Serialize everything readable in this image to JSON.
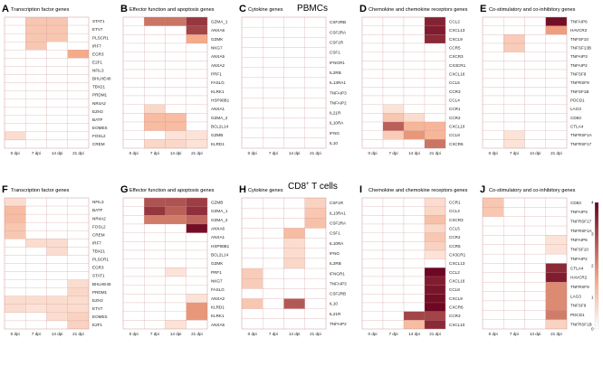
{
  "sections": [
    {
      "title": "PBMCs",
      "superscript": ""
    },
    {
      "title": "CD8",
      "superscript": "+",
      "suffix": " T cells"
    }
  ],
  "legend": {
    "ticks": [
      "4",
      "3",
      "2",
      "1",
      "0"
    ],
    "min": 0,
    "max": 4
  },
  "colors": {
    "low": "#ffffff",
    "mid": "#f4a582",
    "high": "#67001f",
    "grid": "#c98a8a"
  },
  "chart_data": [
    {
      "type": "heatmap",
      "label": "A",
      "title": "Transcription factor genes",
      "columns": [
        "0 dpi",
        "7 dpi",
        "14 dpi",
        "21 dpi"
      ],
      "rows": [
        "STAT1",
        "ETV7",
        "PLSCR1",
        "IRF7",
        "EGR3",
        "E2F1",
        "NFIL3",
        "BHLHE40",
        "TBX21",
        "PRDM1",
        "NR4A2",
        "EZH2",
        "BATF",
        "EOMES",
        "FOSL2",
        "CREM"
      ],
      "values": [
        [
          0,
          1,
          1,
          0
        ],
        [
          0,
          1,
          1,
          0
        ],
        [
          0,
          1,
          1,
          0
        ],
        [
          0,
          1,
          0,
          0
        ],
        [
          0,
          0,
          0,
          1.5
        ],
        [
          0,
          0,
          0,
          0
        ],
        [
          0,
          0,
          0,
          0
        ],
        [
          0,
          0,
          0,
          0
        ],
        [
          0,
          0,
          0,
          0
        ],
        [
          0,
          0,
          0,
          0
        ],
        [
          0,
          0,
          0,
          0
        ],
        [
          0,
          0,
          0,
          0
        ],
        [
          0,
          0,
          0,
          0
        ],
        [
          0,
          0,
          0,
          0
        ],
        [
          0.6,
          0,
          0,
          0
        ],
        [
          0,
          0,
          0,
          0
        ]
      ]
    },
    {
      "type": "heatmap",
      "label": "B",
      "title": "Effector function and apoptosis genes",
      "columns": [
        "0 dpi",
        "7 dpi",
        "14 dpi",
        "21 dpi"
      ],
      "rows": [
        "GZMA_1",
        "ANXA6",
        "GZMK",
        "NKG7",
        "ANXA5",
        "ANXA2",
        "PRF1",
        "FASLG",
        "KLRK1",
        "HSP90B1",
        "ANXA1",
        "GZMA_2",
        "BCL2L14",
        "GZMB",
        "KLRD1"
      ],
      "values": [
        [
          0,
          2.3,
          2.3,
          3.2
        ],
        [
          0,
          0,
          0,
          3
        ],
        [
          0,
          0,
          0,
          1.5
        ],
        [
          0,
          0,
          0,
          0
        ],
        [
          0,
          0,
          0,
          0
        ],
        [
          0,
          0,
          0,
          0
        ],
        [
          0,
          0,
          0,
          0
        ],
        [
          0,
          0,
          0,
          0
        ],
        [
          0,
          0,
          0,
          0
        ],
        [
          0,
          0,
          0,
          0
        ],
        [
          0,
          0.7,
          0,
          0
        ],
        [
          0,
          1.2,
          1.2,
          0
        ],
        [
          0,
          1.2,
          1.2,
          0
        ],
        [
          0,
          0,
          0.5,
          0.5
        ],
        [
          0,
          0.7,
          0.7,
          0.5
        ]
      ]
    },
    {
      "type": "heatmap",
      "label": "C",
      "title": "Cytokine genes",
      "columns": [
        "0 dpi",
        "7 dpi",
        "14 dpi",
        "21 dpi"
      ],
      "rows": [
        "CSF2RB",
        "CSF2RA",
        "CSF1R",
        "CSF1",
        "IFNGR1",
        "IL2RB",
        "IL13RA1",
        "TNFAIP3",
        "TNFAIP2",
        "IL21R",
        "IL10RA",
        "IFNG",
        "IL10"
      ],
      "values": [
        [
          0,
          0,
          0,
          0
        ],
        [
          0,
          0,
          0,
          0
        ],
        [
          0,
          0,
          0,
          0
        ],
        [
          0,
          0,
          0,
          0
        ],
        [
          0,
          0,
          0,
          0
        ],
        [
          0,
          0,
          0,
          0
        ],
        [
          0,
          0,
          0,
          0
        ],
        [
          0,
          0,
          0,
          0
        ],
        [
          0,
          0,
          0,
          0
        ],
        [
          0,
          0,
          0,
          0
        ],
        [
          0,
          0,
          0,
          0
        ],
        [
          0,
          0,
          0,
          0
        ],
        [
          0,
          0,
          0,
          0
        ]
      ]
    },
    {
      "type": "heatmap",
      "label": "D",
      "title": "Chemokine and chemokine receptors genes",
      "columns": [
        "0 dpi",
        "7 dpi",
        "14 dpi",
        "21 dpi"
      ],
      "rows": [
        "CCL2",
        "CXCL13",
        "CXCL9",
        "CCR5",
        "CXCR3",
        "CX3CR1",
        "CXCL16",
        "CCL5",
        "CCR3",
        "CCL4",
        "CCR1",
        "CCR2",
        "CXCL10",
        "CCL8",
        "CXCR6"
      ],
      "values": [
        [
          0,
          0,
          0,
          3.5
        ],
        [
          0,
          0,
          0,
          3.6
        ],
        [
          0,
          0,
          0,
          3.4
        ],
        [
          0,
          0,
          0,
          0
        ],
        [
          0,
          0,
          0,
          0
        ],
        [
          0,
          0,
          0,
          0
        ],
        [
          0,
          0,
          0,
          0
        ],
        [
          0,
          0,
          0,
          0
        ],
        [
          0,
          0,
          0,
          0
        ],
        [
          0,
          0,
          0,
          0
        ],
        [
          0,
          0.5,
          0,
          0
        ],
        [
          0,
          1,
          0.6,
          0
        ],
        [
          0,
          2.6,
          1.3,
          1.3
        ],
        [
          0,
          0.9,
          1.8,
          1.3
        ],
        [
          0,
          0,
          0,
          2.3
        ]
      ]
    },
    {
      "type": "heatmap",
      "label": "E",
      "title": "Co-stimulatory and co-inhibitory genes",
      "columns": [
        "0 dpi",
        "7 dpi",
        "14 dpi",
        "21 dpi"
      ],
      "rows": [
        "TNFAIP6",
        "HAVCR2",
        "TNFSF10",
        "TNFSF13B",
        "TNFAIP3",
        "TNFAIP2",
        "TNFSF9",
        "TNFRSF9",
        "TNFSF1B",
        "PDCD1",
        "LAG3",
        "CD83",
        "CTLA4",
        "TNFRSF1A",
        "TNFRSF17"
      ],
      "values": [
        [
          0,
          0,
          0,
          3.8
        ],
        [
          0,
          0,
          0,
          1.7
        ],
        [
          0,
          0.9,
          0,
          0
        ],
        [
          0,
          0.9,
          0,
          0
        ],
        [
          0,
          0,
          0,
          0
        ],
        [
          0,
          0,
          0,
          0
        ],
        [
          0,
          0,
          0,
          0
        ],
        [
          0,
          0,
          0,
          0
        ],
        [
          0,
          0,
          0,
          0
        ],
        [
          0,
          0,
          0,
          0
        ],
        [
          0,
          0,
          0,
          0
        ],
        [
          0,
          0,
          0,
          0
        ],
        [
          0,
          0,
          0,
          0
        ],
        [
          0,
          0.5,
          0,
          0
        ],
        [
          0,
          0.5,
          0,
          0
        ]
      ]
    },
    {
      "type": "heatmap",
      "label": "F",
      "title": "Transcription factor genes",
      "columns": [
        "0 dpi",
        "7 dpi",
        "14 dpi",
        "21 dpi"
      ],
      "rows": [
        "NFIL3",
        "BATF",
        "NR4A2",
        "FOSL2",
        "CREM",
        "IRF7",
        "TBX21",
        "PLSCR1",
        "EGR3",
        "STAT1",
        "BHLHE40",
        "PRDM1",
        "EZH2",
        "ETV7",
        "EOMES",
        "E2F1"
      ],
      "values": [
        [
          0.6,
          0,
          0,
          0
        ],
        [
          1.2,
          0,
          0,
          0
        ],
        [
          1.2,
          0,
          0,
          0
        ],
        [
          1,
          0,
          0,
          0
        ],
        [
          1,
          0,
          0,
          0
        ],
        [
          0,
          0.6,
          0.6,
          0
        ],
        [
          0,
          0,
          0.6,
          0
        ],
        [
          0,
          0,
          0,
          0
        ],
        [
          0,
          0,
          0,
          0
        ],
        [
          0,
          0,
          0,
          0
        ],
        [
          0,
          0,
          0,
          0.6
        ],
        [
          0,
          0,
          0,
          0.7
        ],
        [
          0.6,
          0.6,
          0.6,
          0.6
        ],
        [
          0.6,
          0.5,
          0.6,
          0.6
        ],
        [
          0,
          0,
          0.6,
          0.8
        ],
        [
          0,
          0,
          0,
          0.8
        ]
      ]
    },
    {
      "type": "heatmap",
      "label": "G",
      "title": "Effector function and apoptosis genes",
      "columns": [
        "0 dpi",
        "7 dpi",
        "14 dpi",
        "21 dpi"
      ],
      "rows": [
        "GZMB",
        "GZMA_1",
        "GZMA_2",
        "ANXA6",
        "ANXA1",
        "HSP90B1",
        "BCL2L14",
        "GZMK",
        "PRF1",
        "NKG7",
        "FASLG",
        "ANXA2",
        "KLRD1",
        "KLRK1",
        "ANXA5"
      ],
      "values": [
        [
          0,
          2.8,
          2.8,
          3.1
        ],
        [
          0,
          3.2,
          2.6,
          3.3
        ],
        [
          0,
          2.2,
          2.2,
          2.5
        ],
        [
          0,
          0,
          0,
          3.8
        ],
        [
          0,
          0,
          0,
          0
        ],
        [
          0,
          0,
          0,
          0
        ],
        [
          0,
          0,
          0,
          0
        ],
        [
          0,
          0,
          0,
          0
        ],
        [
          0,
          0,
          0.5,
          0
        ],
        [
          0,
          0,
          0,
          0
        ],
        [
          0,
          0,
          0,
          0
        ],
        [
          0,
          0,
          0,
          0.5
        ],
        [
          0,
          0,
          0,
          1.8
        ],
        [
          0,
          0,
          0,
          1.8
        ],
        [
          0,
          0,
          0.5,
          0
        ]
      ]
    },
    {
      "type": "heatmap",
      "label": "H",
      "title": "Cytokine genes",
      "columns": [
        "0 dpi",
        "7 dpi",
        "14 dpi",
        "21 dpi"
      ],
      "rows": [
        "CSF1R",
        "IL13RA1",
        "CSF2RA",
        "CSF1",
        "IL10RA",
        "IFNG",
        "IL2RB",
        "IFNGR1",
        "TNFAIP3",
        "CSF2RB",
        "IL10",
        "IL21R",
        "TNFAIP2"
      ],
      "values": [
        [
          0,
          0,
          0,
          0.8
        ],
        [
          0,
          0,
          0,
          1
        ],
        [
          0,
          0,
          0,
          1.1
        ],
        [
          0,
          0,
          1.2,
          0
        ],
        [
          0,
          0,
          0.6,
          0
        ],
        [
          0,
          0,
          0.6,
          0
        ],
        [
          0,
          0,
          0.7,
          0
        ],
        [
          0.9,
          0,
          0,
          0
        ],
        [
          0.9,
          0,
          0,
          0
        ],
        [
          0,
          0,
          0,
          0
        ],
        [
          1,
          0,
          2.7,
          0
        ],
        [
          0,
          0,
          0,
          0
        ],
        [
          0,
          0,
          0,
          0
        ]
      ]
    },
    {
      "type": "heatmap",
      "label": "I",
      "title": "Chemokine and chemokine receptors genes",
      "columns": [
        "0 dpi",
        "7 dpi",
        "14 dpi",
        "21 dpi"
      ],
      "rows": [
        "CCR1",
        "CCL4",
        "CXCR3",
        "CCL5",
        "CCR2",
        "CCR5",
        "CX3CR1",
        "CXCL13",
        "CCL2",
        "CXCL16",
        "CCL8",
        "CXCL9",
        "CXCR6",
        "CCR3",
        "CXCL10"
      ],
      "values": [
        [
          0,
          0,
          0,
          0.6
        ],
        [
          0,
          0,
          0,
          0.7
        ],
        [
          0,
          0,
          0,
          1.1
        ],
        [
          0,
          0,
          0,
          0.7
        ],
        [
          0,
          0,
          0,
          1
        ],
        [
          0,
          0,
          0,
          0.8
        ],
        [
          0,
          0,
          0,
          0.5
        ],
        [
          0,
          0,
          0,
          0
        ],
        [
          0,
          0,
          0,
          3.9
        ],
        [
          0,
          0,
          0,
          3.6
        ],
        [
          0,
          0,
          0,
          3.7
        ],
        [
          0,
          0,
          0,
          3.8
        ],
        [
          0,
          0,
          0,
          3.9
        ],
        [
          0,
          0,
          3,
          3
        ],
        [
          0,
          0,
          1.2,
          3.4
        ]
      ]
    },
    {
      "type": "heatmap",
      "label": "J",
      "title": "Co-stimulatory and co-inhibitory genes",
      "columns": [
        "0 dpi",
        "7 dpi",
        "14 dpi",
        "21 dpi"
      ],
      "rows": [
        "CD83",
        "TNFAIP3",
        "TNFRSF17",
        "TNFRSF1A",
        "TNFAIP6",
        "TNFSF10",
        "TNFAIP2",
        "CTLA4",
        "HAVCR2",
        "TNFRSF9",
        "LAG3",
        "TNFSF9",
        "PDCD1",
        "TNFRSF1B"
      ],
      "values": [
        [
          1,
          0,
          0,
          0
        ],
        [
          1,
          0,
          0,
          0
        ],
        [
          0,
          0,
          0,
          0
        ],
        [
          0,
          0,
          0,
          0
        ],
        [
          0,
          0,
          0,
          0.5
        ],
        [
          0,
          0,
          0,
          0.5
        ],
        [
          0,
          0,
          0,
          0
        ],
        [
          0,
          0,
          0,
          3.4
        ],
        [
          0,
          0,
          0,
          3.6
        ],
        [
          0,
          0,
          0,
          2
        ],
        [
          0,
          0,
          0,
          2
        ],
        [
          0,
          0,
          0,
          2
        ],
        [
          0,
          0,
          0,
          2.2
        ],
        [
          0,
          0,
          0,
          0.8
        ]
      ]
    }
  ]
}
